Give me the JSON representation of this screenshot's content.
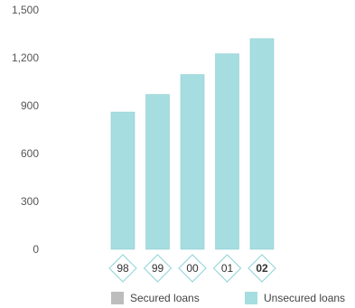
{
  "chart_data": {
    "type": "bar",
    "categories": [
      "98",
      "99",
      "00",
      "01",
      "02"
    ],
    "highlight_category": "02",
    "series": [
      {
        "name": "Secured loans",
        "color": "#bdbdbd",
        "values": [
          0,
          0,
          0,
          0,
          0
        ]
      },
      {
        "name": "Unsecured loans",
        "color": "#a6dde0",
        "values": [
          860,
          970,
          1095,
          1225,
          1320
        ]
      }
    ],
    "yticks": [
      "0",
      "300",
      "600",
      "900",
      "1,200",
      "1,500"
    ],
    "ylim": [
      0,
      1500
    ],
    "grid": false,
    "legend_position": "bottom"
  }
}
